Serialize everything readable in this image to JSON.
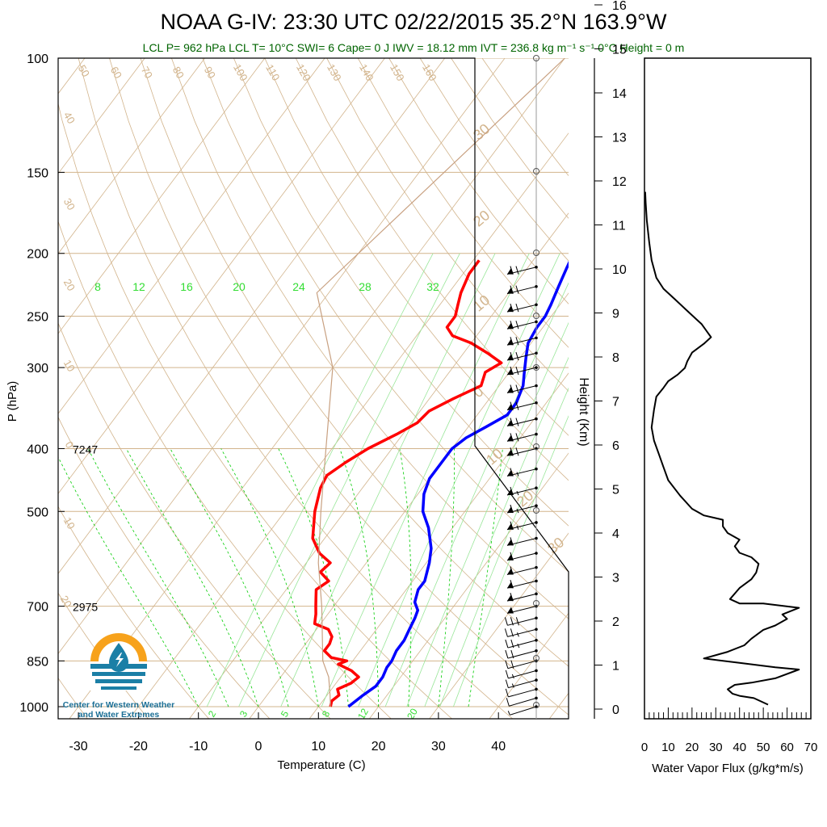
{
  "header": {
    "title": "NOAA G-IV: 23:30 UTC 02/22/2015  35.2°N 163.9°W",
    "subtitle": "LCL P= 962 hPa  LCL T= 10°C  SWI= 6  Cape= 0 J  IWV = 18.12 mm  IVT = 236.8 kg m⁻¹ s⁻¹  0°C Height = 0 m"
  },
  "colors": {
    "temperature": "#ff0000",
    "dewpoint": "#0000ff",
    "title_text": "#000000",
    "subtitle_text": "#006400",
    "isotherm_lines": "#d2b48c",
    "mixing_ratio_lines": "#00cc00",
    "wind_barbs": "#000000",
    "logo_orange": "#f7a21b",
    "logo_blue": "#1b7fa6"
  },
  "logo": {
    "org_line1": "Center for Western Weather",
    "org_line2": "and Water Extremes",
    "icon": "water-drop-sun-icon"
  },
  "chart_data": [
    {
      "type": "line",
      "name": "skew-t",
      "xlabel": "Temperature (C)",
      "ylabel": "P (hPa)",
      "xlim": [
        -33,
        52
      ],
      "ylim": [
        1000,
        100
      ],
      "y_scale": "log",
      "x_ticks": [
        -30,
        -20,
        -10,
        0,
        10,
        20,
        30,
        40
      ],
      "y_ticks": [
        100,
        150,
        200,
        250,
        300,
        400,
        500,
        700,
        850,
        1000
      ],
      "height_labels": [
        {
          "p": 400,
          "text": "7247"
        },
        {
          "p": 700,
          "text": "2975"
        }
      ],
      "isotherm_labels": [
        "50",
        "60",
        "70",
        "80",
        "90",
        "100",
        "110",
        "120",
        "130",
        "140",
        "150",
        "160",
        "40",
        "30",
        "20",
        "10",
        "0",
        "10",
        "20"
      ],
      "mixing_ratio_labels_top": [
        "8",
        "12",
        "16",
        "20",
        "24",
        "28",
        "32"
      ],
      "mixing_ratio_labels_bottom": [
        "2",
        "3",
        "5",
        "8",
        "12",
        "20"
      ],
      "right_side_labels": [
        "30",
        "20",
        "10",
        "0",
        "10",
        "20",
        "30"
      ],
      "series": [
        {
          "name": "Temperature",
          "points": [
            [
              12,
              1000
            ],
            [
              11.5,
              980
            ],
            [
              12,
              960
            ],
            [
              11,
              940
            ],
            [
              12.5,
              920
            ],
            [
              13,
              900
            ],
            [
              11,
              880
            ],
            [
              8,
              860
            ],
            [
              9,
              850
            ],
            [
              6,
              840
            ],
            [
              4,
              820
            ],
            [
              4,
              800
            ],
            [
              3.5,
              780
            ],
            [
              2,
              760
            ],
            [
              -1,
              745
            ],
            [
              -2,
              720
            ],
            [
              -3,
              700
            ],
            [
              -4,
              680
            ],
            [
              -5,
              660
            ],
            [
              -4,
              640
            ],
            [
              -6.5,
              620
            ],
            [
              -6,
              600
            ],
            [
              -9,
              580
            ],
            [
              -12,
              550
            ],
            [
              -15,
              500
            ],
            [
              -17,
              460
            ],
            [
              -17.5,
              440
            ],
            [
              -16,
              420
            ],
            [
              -14,
              400
            ],
            [
              -11,
              380
            ],
            [
              -9,
              365
            ],
            [
              -8.5,
              350
            ],
            [
              -6,
              335
            ],
            [
              -3,
              320
            ],
            [
              -4,
              305
            ],
            [
              -2.5,
              295
            ],
            [
              -6,
              285
            ],
            [
              -10,
              275
            ],
            [
              -14,
              268
            ],
            [
              -16,
              260
            ],
            [
              -16,
              250
            ],
            [
              -17,
              240
            ],
            [
              -18,
              230
            ],
            [
              -19,
              215
            ],
            [
              -19,
              205
            ]
          ]
        },
        {
          "name": "Dewpoint",
          "points": [
            [
              15,
              1000
            ],
            [
              16,
              960
            ],
            [
              17,
              930
            ],
            [
              17,
              900
            ],
            [
              16.5,
              870
            ],
            [
              16.5,
              850
            ],
            [
              16,
              820
            ],
            [
              16,
              790
            ],
            [
              15.5,
              760
            ],
            [
              15,
              730
            ],
            [
              14.5,
              710
            ],
            [
              13,
              690
            ],
            [
              12,
              660
            ],
            [
              12,
              640
            ],
            [
              10.5,
              600
            ],
            [
              9,
              570
            ],
            [
              6,
              530
            ],
            [
              3,
              500
            ],
            [
              1,
              470
            ],
            [
              0,
              445
            ],
            [
              0,
              420
            ],
            [
              0,
              400
            ],
            [
              1,
              385
            ],
            [
              3,
              370
            ],
            [
              5,
              355
            ],
            [
              5,
              340
            ],
            [
              4,
              320
            ],
            [
              2.5,
              305
            ],
            [
              1,
              290
            ],
            [
              -0.5,
              275
            ],
            [
              -1,
              260
            ],
            [
              -1,
              250
            ],
            [
              -1.5,
              240
            ],
            [
              -2.5,
              225
            ],
            [
              -3.5,
              210
            ],
            [
              -4,
              202
            ]
          ]
        },
        {
          "name": "Parcel",
          "points": [
            [
              12,
              1000
            ],
            [
              10.5,
              960
            ],
            [
              8,
              900
            ],
            [
              5,
              850
            ],
            [
              -2,
              700
            ],
            [
              -8,
              600
            ],
            [
              -14,
              500
            ],
            [
              -21,
              400
            ],
            [
              -30,
              300
            ],
            [
              -42,
              230
            ],
            [
              -30,
              100
            ]
          ]
        }
      ],
      "wind_barbs": [
        {
          "p": 1000,
          "spd": 5,
          "dir": 300
        },
        {
          "p": 970,
          "spd": 10,
          "dir": 290
        },
        {
          "p": 940,
          "spd": 10,
          "dir": 280
        },
        {
          "p": 910,
          "spd": 15,
          "dir": 280
        },
        {
          "p": 880,
          "spd": 15,
          "dir": 280
        },
        {
          "p": 850,
          "spd": 20,
          "dir": 275
        },
        {
          "p": 820,
          "spd": 20,
          "dir": 275
        },
        {
          "p": 790,
          "spd": 25,
          "dir": 275
        },
        {
          "p": 760,
          "spd": 25,
          "dir": 270
        },
        {
          "p": 730,
          "spd": 30,
          "dir": 270
        },
        {
          "p": 700,
          "spd": 55,
          "dir": 265
        },
        {
          "p": 670,
          "spd": 60,
          "dir": 265
        },
        {
          "p": 640,
          "spd": 60,
          "dir": 265
        },
        {
          "p": 610,
          "spd": 60,
          "dir": 265
        },
        {
          "p": 580,
          "spd": 60,
          "dir": 265
        },
        {
          "p": 550,
          "spd": 60,
          "dir": 265
        },
        {
          "p": 520,
          "spd": 65,
          "dir": 265
        },
        {
          "p": 490,
          "spd": 65,
          "dir": 265
        },
        {
          "p": 460,
          "spd": 65,
          "dir": 265
        },
        {
          "p": 430,
          "spd": 65,
          "dir": 265
        },
        {
          "p": 400,
          "spd": 70,
          "dir": 265
        },
        {
          "p": 380,
          "spd": 70,
          "dir": 265
        },
        {
          "p": 360,
          "spd": 70,
          "dir": 265
        },
        {
          "p": 340,
          "spd": 70,
          "dir": 265
        },
        {
          "p": 320,
          "spd": 70,
          "dir": 265
        },
        {
          "p": 300,
          "spd": 70,
          "dir": 265
        },
        {
          "p": 285,
          "spd": 70,
          "dir": 265
        },
        {
          "p": 270,
          "spd": 70,
          "dir": 265
        },
        {
          "p": 255,
          "spd": 70,
          "dir": 265
        },
        {
          "p": 240,
          "spd": 70,
          "dir": 265
        },
        {
          "p": 225,
          "spd": 70,
          "dir": 265
        },
        {
          "p": 210,
          "spd": 70,
          "dir": 265
        }
      ]
    },
    {
      "type": "line",
      "name": "water-vapor-flux",
      "xlabel": "Water Vapor Flux (g/kg*m/s)",
      "ylabel": "Height (Km)",
      "xlim": [
        0,
        70
      ],
      "ylim": [
        -0.25,
        16.3
      ],
      "x_ticks": [
        0,
        10,
        20,
        30,
        40,
        50,
        60,
        70
      ],
      "y_ticks": [
        0,
        1,
        2,
        3,
        4,
        5,
        6,
        7,
        8,
        9,
        10,
        11,
        12,
        13,
        14,
        15,
        16
      ],
      "values": [
        [
          52,
          0.1
        ],
        [
          46,
          0.25
        ],
        [
          40,
          0.3
        ],
        [
          37,
          0.35
        ],
        [
          35,
          0.45
        ],
        [
          38,
          0.55
        ],
        [
          45,
          0.6
        ],
        [
          55,
          0.7
        ],
        [
          65,
          0.9
        ],
        [
          55,
          0.95
        ],
        [
          40,
          1.05
        ],
        [
          25,
          1.15
        ],
        [
          35,
          1.3
        ],
        [
          42,
          1.45
        ],
        [
          45,
          1.6
        ],
        [
          50,
          1.8
        ],
        [
          55,
          1.9
        ],
        [
          60,
          2.05
        ],
        [
          58,
          2.15
        ],
        [
          65,
          2.3
        ],
        [
          50,
          2.4
        ],
        [
          40,
          2.4
        ],
        [
          36,
          2.5
        ],
        [
          40,
          2.75
        ],
        [
          45,
          2.95
        ],
        [
          47,
          3.1
        ],
        [
          48,
          3.3
        ],
        [
          45,
          3.45
        ],
        [
          40,
          3.55
        ],
        [
          38,
          3.7
        ],
        [
          40,
          3.85
        ],
        [
          35,
          4.0
        ],
        [
          33,
          4.15
        ],
        [
          33,
          4.3
        ],
        [
          25,
          4.4
        ],
        [
          20,
          4.55
        ],
        [
          15,
          4.85
        ],
        [
          10,
          5.2
        ],
        [
          8,
          5.5
        ],
        [
          6,
          5.8
        ],
        [
          4,
          6.1
        ],
        [
          3,
          6.4
        ],
        [
          4,
          6.8
        ],
        [
          5,
          7.1
        ],
        [
          8,
          7.3
        ],
        [
          10,
          7.45
        ],
        [
          14,
          7.6
        ],
        [
          17,
          7.75
        ],
        [
          18,
          7.9
        ],
        [
          20,
          8.1
        ],
        [
          25,
          8.3
        ],
        [
          28,
          8.45
        ],
        [
          26,
          8.6
        ],
        [
          24,
          8.75
        ],
        [
          22,
          8.85
        ],
        [
          17,
          9.1
        ],
        [
          13,
          9.3
        ],
        [
          8,
          9.55
        ],
        [
          5,
          9.8
        ],
        [
          3,
          10.2
        ],
        [
          2,
          10.6
        ],
        [
          1,
          11.1
        ],
        [
          0.5,
          11.5
        ],
        [
          0.3,
          11.75
        ]
      ]
    }
  ]
}
